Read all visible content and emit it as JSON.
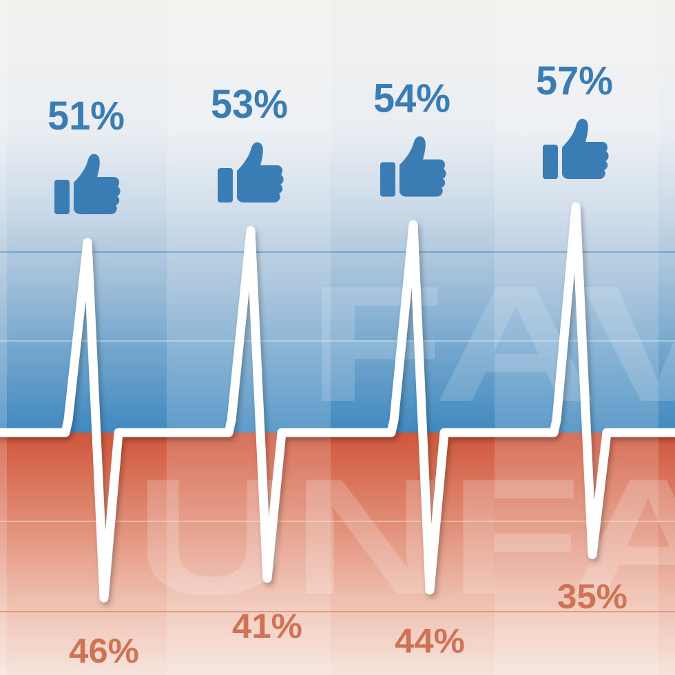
{
  "chart_data": {
    "type": "line",
    "categories": [
      "",
      "",
      "",
      ""
    ],
    "series": [
      {
        "values": [
          51,
          53,
          54,
          57
        ]
      },
      {
        "values": [
          46,
          41,
          44,
          35
        ]
      }
    ],
    "favorable_labels": [
      "51%",
      "53%",
      "54%",
      "57%"
    ],
    "unfavorable_labels": [
      "46%",
      "41%",
      "44%",
      "35%"
    ],
    "background_words": {
      "top": "FAV",
      "bottom": "UNFA"
    },
    "grid": true,
    "colors": {
      "favorable": "#3a7db5",
      "unfavorable": "#cf7356",
      "band_top": "#3f89bf",
      "band_bottom": "#d0563b",
      "trace": "#ffffff"
    },
    "icons": [
      "thumbs-up-icon",
      "thumbs-up-icon",
      "thumbs-up-icon",
      "thumbs-up-icon"
    ]
  }
}
